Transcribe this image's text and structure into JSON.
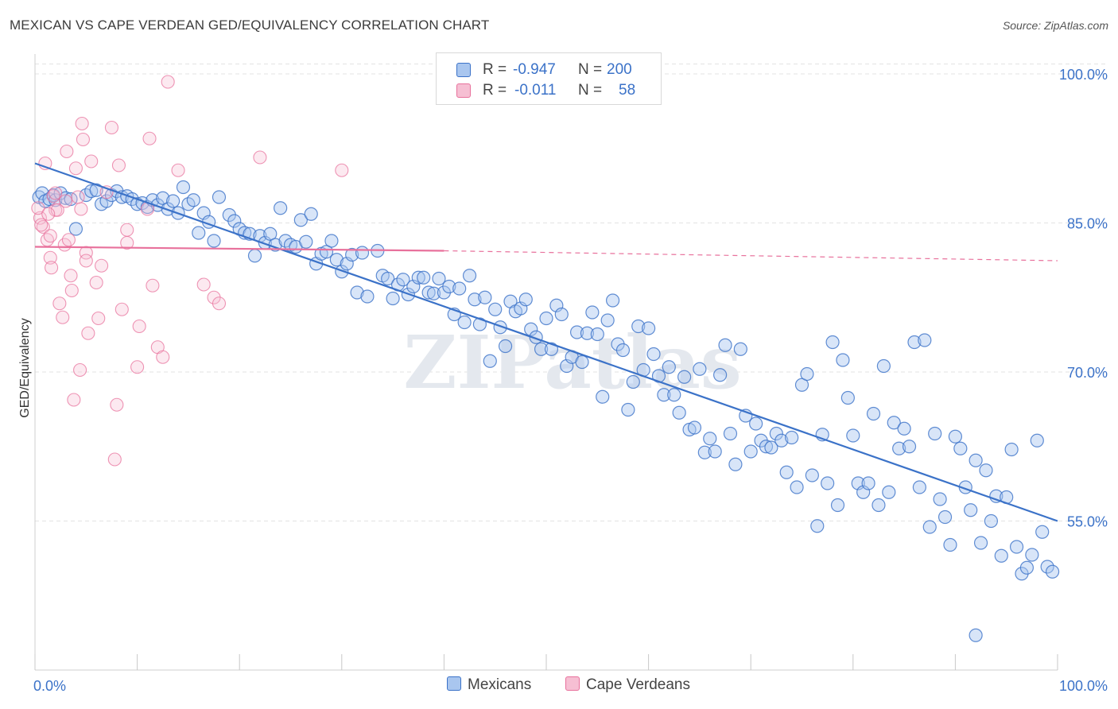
{
  "title": "MEXICAN VS CAPE VERDEAN GED/EQUIVALENCY CORRELATION CHART",
  "source": "Source: ZipAtlas.com",
  "watermark": "ZIPatlas",
  "colors": {
    "blue": "#3b72c8",
    "blue_fill": "#a9c6ef",
    "pink": "#e8719c",
    "pink_fill": "#f6bfd3",
    "grid": "#e3e3e3",
    "tick_label": "#3b72c8"
  },
  "legend": {
    "rows": [
      {
        "r_label": "R =",
        "r_value": "-0.947",
        "n_label": "N =",
        "n_value": "200",
        "series": "Mexicans"
      },
      {
        "r_label": "R =",
        "r_value": "-0.011",
        "n_label": "N =",
        "n_value": "58",
        "series": "Cape Verdeans"
      }
    ],
    "bottom": [
      "Mexicans",
      "Cape Verdeans"
    ]
  },
  "chart_data": {
    "type": "scatter",
    "title": "MEXICAN VS CAPE VERDEAN GED/EQUIVALENCY CORRELATION CHART",
    "xlabel": "",
    "ylabel": "GED/Equivalency",
    "xlim": [
      0,
      100
    ],
    "ylim": [
      40,
      102
    ],
    "x_tick_labels": [
      "0.0%",
      "100.0%"
    ],
    "y_ticks": [
      100,
      85,
      70,
      55
    ],
    "y_tick_labels": [
      "100.0%",
      "85.0%",
      "70.0%",
      "55.0%"
    ],
    "grid": true,
    "legend_position": "top-center",
    "series": [
      {
        "name": "Mexicans",
        "color": "#3b72c8",
        "trend": {
          "x": [
            0,
            100
          ],
          "y": [
            91.0,
            55.0
          ],
          "style": "solid"
        },
        "points": [
          [
            0.4,
            87.6
          ],
          [
            0.7,
            88.0
          ],
          [
            1.0,
            87.2
          ],
          [
            1.4,
            87.4
          ],
          [
            1.8,
            87.8
          ],
          [
            2.0,
            87.3
          ],
          [
            2.5,
            88.0
          ],
          [
            3.0,
            87.5
          ],
          [
            3.5,
            87.4
          ],
          [
            4.0,
            84.4
          ],
          [
            5.0,
            87.8
          ],
          [
            5.5,
            88.2
          ],
          [
            6.0,
            88.3
          ],
          [
            6.5,
            86.9
          ],
          [
            7.0,
            87.2
          ],
          [
            7.5,
            87.8
          ],
          [
            8.0,
            88.2
          ],
          [
            8.5,
            87.6
          ],
          [
            9.0,
            87.7
          ],
          [
            9.5,
            87.4
          ],
          [
            10.0,
            86.9
          ],
          [
            10.5,
            87.0
          ],
          [
            11.0,
            86.6
          ],
          [
            11.5,
            87.3
          ],
          [
            12.0,
            86.8
          ],
          [
            12.5,
            87.5
          ],
          [
            13.0,
            86.4
          ],
          [
            13.5,
            87.2
          ],
          [
            14.0,
            86.0
          ],
          [
            14.5,
            88.6
          ],
          [
            15.0,
            86.9
          ],
          [
            15.5,
            87.3
          ],
          [
            16.0,
            84.0
          ],
          [
            16.5,
            86.0
          ],
          [
            17.0,
            85.1
          ],
          [
            17.5,
            83.2
          ],
          [
            18.0,
            87.6
          ],
          [
            19.0,
            85.8
          ],
          [
            19.5,
            85.2
          ],
          [
            20.0,
            84.4
          ],
          [
            20.5,
            84.0
          ],
          [
            21.0,
            83.9
          ],
          [
            21.5,
            81.7
          ],
          [
            22.0,
            83.7
          ],
          [
            22.5,
            83.0
          ],
          [
            23.0,
            83.9
          ],
          [
            23.5,
            82.8
          ],
          [
            24.0,
            86.5
          ],
          [
            24.5,
            83.2
          ],
          [
            25.0,
            82.8
          ],
          [
            25.5,
            82.6
          ],
          [
            26.0,
            85.3
          ],
          [
            26.5,
            83.1
          ],
          [
            27.0,
            85.9
          ],
          [
            27.5,
            80.9
          ],
          [
            28.0,
            81.9
          ],
          [
            28.5,
            82.1
          ],
          [
            29.0,
            83.2
          ],
          [
            29.5,
            81.3
          ],
          [
            30.0,
            80.1
          ],
          [
            30.5,
            80.9
          ],
          [
            31.0,
            81.8
          ],
          [
            31.5,
            78.0
          ],
          [
            32.0,
            82.0
          ],
          [
            32.5,
            77.6
          ],
          [
            33.5,
            82.2
          ],
          [
            34.0,
            79.7
          ],
          [
            34.5,
            79.4
          ],
          [
            35.0,
            77.4
          ],
          [
            35.5,
            78.8
          ],
          [
            36.0,
            79.3
          ],
          [
            36.5,
            77.8
          ],
          [
            37.0,
            78.6
          ],
          [
            37.5,
            79.5
          ],
          [
            38.0,
            79.5
          ],
          [
            38.5,
            78.0
          ],
          [
            39.0,
            77.9
          ],
          [
            39.5,
            79.4
          ],
          [
            40.0,
            78.0
          ],
          [
            40.5,
            78.6
          ],
          [
            41.0,
            75.8
          ],
          [
            41.5,
            78.4
          ],
          [
            42.0,
            75.0
          ],
          [
            42.5,
            79.7
          ],
          [
            43.0,
            77.3
          ],
          [
            43.5,
            74.8
          ],
          [
            44.0,
            77.5
          ],
          [
            44.5,
            71.1
          ],
          [
            45.0,
            76.3
          ],
          [
            45.5,
            74.5
          ],
          [
            46.0,
            72.6
          ],
          [
            46.5,
            77.1
          ],
          [
            47.0,
            76.1
          ],
          [
            47.5,
            76.4
          ],
          [
            48.0,
            77.3
          ],
          [
            48.5,
            74.3
          ],
          [
            49.0,
            73.5
          ],
          [
            49.5,
            72.3
          ],
          [
            50.0,
            75.4
          ],
          [
            50.5,
            72.3
          ],
          [
            51.0,
            76.7
          ],
          [
            51.5,
            75.8
          ],
          [
            52.0,
            70.6
          ],
          [
            52.5,
            71.5
          ],
          [
            53.0,
            74.0
          ],
          [
            53.5,
            71.0
          ],
          [
            54.0,
            73.9
          ],
          [
            54.5,
            76.0
          ],
          [
            55.0,
            73.8
          ],
          [
            55.5,
            67.5
          ],
          [
            56.0,
            75.2
          ],
          [
            56.5,
            77.2
          ],
          [
            57.0,
            72.8
          ],
          [
            57.5,
            72.2
          ],
          [
            58.0,
            66.2
          ],
          [
            58.5,
            69.0
          ],
          [
            59.0,
            74.6
          ],
          [
            59.5,
            70.2
          ],
          [
            60.0,
            74.4
          ],
          [
            60.5,
            71.8
          ],
          [
            61.0,
            69.6
          ],
          [
            61.5,
            67.7
          ],
          [
            62.0,
            70.5
          ],
          [
            62.5,
            67.7
          ],
          [
            63.0,
            65.9
          ],
          [
            63.5,
            69.5
          ],
          [
            64.0,
            64.2
          ],
          [
            64.5,
            64.4
          ],
          [
            65.0,
            70.3
          ],
          [
            65.5,
            61.9
          ],
          [
            66.0,
            63.3
          ],
          [
            66.5,
            62.0
          ],
          [
            67.0,
            69.7
          ],
          [
            67.5,
            72.7
          ],
          [
            68.0,
            63.8
          ],
          [
            68.5,
            60.7
          ],
          [
            69.0,
            72.3
          ],
          [
            69.5,
            65.6
          ],
          [
            70.0,
            62.0
          ],
          [
            70.5,
            64.8
          ],
          [
            71.0,
            63.1
          ],
          [
            71.5,
            62.5
          ],
          [
            72.0,
            62.4
          ],
          [
            72.5,
            63.8
          ],
          [
            73.0,
            63.1
          ],
          [
            73.5,
            59.9
          ],
          [
            74.0,
            63.4
          ],
          [
            74.5,
            58.4
          ],
          [
            75.0,
            68.7
          ],
          [
            75.5,
            69.8
          ],
          [
            76.0,
            59.6
          ],
          [
            76.5,
            54.5
          ],
          [
            77.0,
            63.7
          ],
          [
            77.5,
            58.8
          ],
          [
            78.0,
            73.0
          ],
          [
            78.5,
            56.6
          ],
          [
            79.0,
            71.2
          ],
          [
            79.5,
            67.4
          ],
          [
            80.0,
            63.6
          ],
          [
            80.5,
            58.8
          ],
          [
            81.0,
            57.9
          ],
          [
            81.5,
            58.8
          ],
          [
            82.0,
            65.8
          ],
          [
            82.5,
            56.6
          ],
          [
            83.0,
            70.6
          ],
          [
            83.5,
            57.9
          ],
          [
            84.0,
            64.9
          ],
          [
            84.5,
            62.3
          ],
          [
            85.0,
            64.3
          ],
          [
            85.5,
            62.5
          ],
          [
            86.0,
            73.0
          ],
          [
            86.5,
            58.4
          ],
          [
            87.0,
            73.2
          ],
          [
            87.5,
            54.4
          ],
          [
            88.0,
            63.8
          ],
          [
            88.5,
            57.2
          ],
          [
            89.0,
            55.4
          ],
          [
            89.5,
            52.6
          ],
          [
            90.0,
            63.5
          ],
          [
            90.5,
            62.3
          ],
          [
            91.0,
            58.4
          ],
          [
            91.5,
            56.1
          ],
          [
            92.0,
            61.1
          ],
          [
            92.5,
            52.8
          ],
          [
            93.0,
            60.1
          ],
          [
            93.5,
            55.0
          ],
          [
            94.0,
            57.5
          ],
          [
            94.5,
            51.5
          ],
          [
            95.0,
            57.4
          ],
          [
            95.5,
            62.2
          ],
          [
            96.0,
            52.4
          ],
          [
            96.5,
            49.7
          ],
          [
            97.0,
            50.3
          ],
          [
            97.5,
            51.6
          ],
          [
            98.0,
            63.1
          ],
          [
            98.5,
            53.9
          ],
          [
            99.0,
            50.4
          ],
          [
            99.5,
            49.9
          ],
          [
            92.0,
            43.5
          ]
        ]
      },
      {
        "name": "Cape Verdeans",
        "color": "#e8719c",
        "trend": {
          "x": [
            0,
            40,
            100
          ],
          "y": [
            82.6,
            82.2,
            81.2
          ],
          "solid_until": 40
        },
        "points": [
          [
            0.5,
            85.5
          ],
          [
            0.8,
            84.6
          ],
          [
            1.0,
            91.0
          ],
          [
            1.2,
            83.3
          ],
          [
            1.5,
            83.7
          ],
          [
            1.5,
            81.5
          ],
          [
            1.6,
            80.5
          ],
          [
            1.8,
            87.7
          ],
          [
            2.0,
            86.3
          ],
          [
            2.0,
            88.0
          ],
          [
            2.2,
            86.3
          ],
          [
            2.4,
            76.9
          ],
          [
            2.7,
            75.5
          ],
          [
            2.9,
            82.8
          ],
          [
            3.0,
            87.2
          ],
          [
            3.1,
            92.2
          ],
          [
            3.3,
            83.3
          ],
          [
            3.5,
            79.7
          ],
          [
            3.6,
            78.2
          ],
          [
            3.8,
            67.2
          ],
          [
            4.0,
            90.5
          ],
          [
            4.2,
            87.6
          ],
          [
            4.4,
            70.2
          ],
          [
            4.5,
            86.4
          ],
          [
            4.6,
            95.0
          ],
          [
            4.7,
            93.4
          ],
          [
            5.0,
            82.0
          ],
          [
            5.0,
            81.2
          ],
          [
            5.2,
            73.9
          ],
          [
            5.5,
            91.2
          ],
          [
            6.0,
            79.0
          ],
          [
            6.2,
            75.4
          ],
          [
            6.5,
            80.7
          ],
          [
            7.0,
            88.1
          ],
          [
            7.5,
            94.6
          ],
          [
            7.8,
            61.2
          ],
          [
            8.0,
            66.7
          ],
          [
            8.2,
            90.8
          ],
          [
            8.5,
            76.3
          ],
          [
            9.0,
            84.3
          ],
          [
            9.0,
            83.0
          ],
          [
            10.0,
            70.5
          ],
          [
            10.2,
            74.6
          ],
          [
            11.0,
            86.4
          ],
          [
            11.2,
            93.5
          ],
          [
            11.5,
            78.7
          ],
          [
            12.0,
            72.5
          ],
          [
            12.5,
            71.5
          ],
          [
            13.0,
            99.2
          ],
          [
            14.0,
            90.3
          ],
          [
            16.5,
            78.8
          ],
          [
            17.5,
            77.5
          ],
          [
            18.0,
            76.9
          ],
          [
            22.0,
            91.6
          ],
          [
            30.0,
            90.3
          ],
          [
            0.3,
            86.5
          ],
          [
            0.6,
            84.8
          ],
          [
            1.3,
            85.9
          ]
        ]
      }
    ]
  }
}
